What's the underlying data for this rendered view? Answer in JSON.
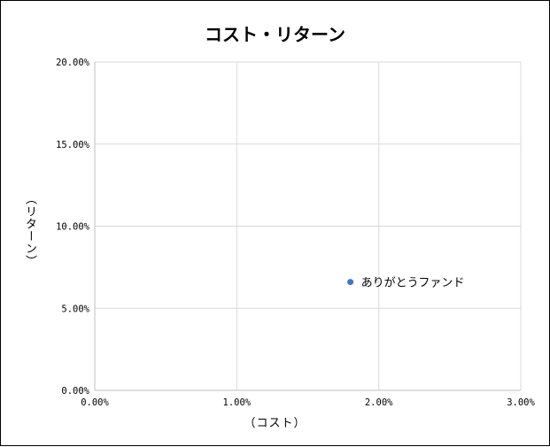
{
  "chart_data": {
    "type": "scatter",
    "title": "コスト・リターン",
    "xlabel": "（コスト）",
    "ylabel": "（リターン）",
    "xlim": [
      0,
      0.03
    ],
    "ylim": [
      0,
      0.2
    ],
    "x_ticks": [
      {
        "value": 0.0,
        "label": "0.00%"
      },
      {
        "value": 0.01,
        "label": "1.00%"
      },
      {
        "value": 0.02,
        "label": "2.00%"
      },
      {
        "value": 0.03,
        "label": "3.00%"
      }
    ],
    "y_ticks": [
      {
        "value": 0.0,
        "label": "0.00%"
      },
      {
        "value": 0.05,
        "label": "5.00%"
      },
      {
        "value": 0.1,
        "label": "10.00%"
      },
      {
        "value": 0.15,
        "label": "15.00%"
      },
      {
        "value": 0.2,
        "label": "20.00%"
      }
    ],
    "grid": true,
    "points": [
      {
        "x": 0.018,
        "y": 0.066,
        "label": "ありがとうファンド"
      }
    ],
    "marker_color": "#4472C4",
    "grid_color": "#D9D9D9"
  }
}
